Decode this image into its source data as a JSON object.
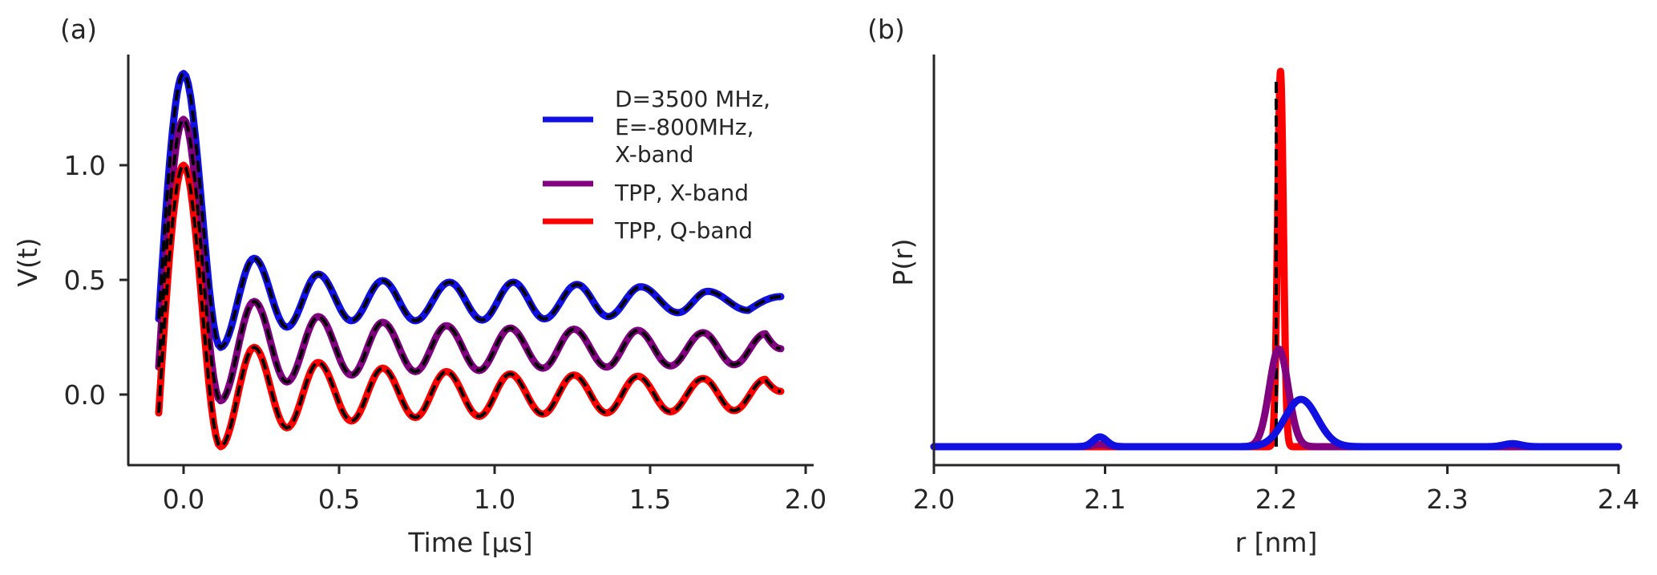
{
  "chart_data": [
    {
      "panel": "(a)",
      "type": "line",
      "xlabel": "Time [µs]",
      "ylabel": "V(t)",
      "xlim": [
        -0.178,
        2.03
      ],
      "ylim": [
        -0.3,
        1.48
      ],
      "xticks": [
        0.0,
        0.5,
        1.0,
        1.5,
        2.0
      ],
      "xtick_labels": [
        "0.0",
        "0.5",
        "1.0",
        "1.5",
        "2.0"
      ],
      "yticks": [
        0.0,
        0.5,
        1.0
      ],
      "ytick_labels": [
        "0.0",
        "0.5",
        "1.0"
      ],
      "grid": false,
      "legend_position": "top-right",
      "fit_overlay": {
        "style": "dashed",
        "color": "#000000",
        "description": "black dashed fit over each series"
      },
      "series": [
        {
          "name": "D=3500 MHz,\nE=-800MHz,\nX-band",
          "legend_lines": [
            "D=3500 MHz,",
            "E=-800MHz,",
            "X-band"
          ],
          "color": "#1010e0",
          "points": [
            [
              -0.08,
              0.33
            ],
            [
              0.0,
              1.4
            ],
            [
              0.119,
              0.206
            ],
            [
              0.227,
              0.594
            ],
            [
              0.332,
              0.294
            ],
            [
              0.433,
              0.525
            ],
            [
              0.54,
              0.322
            ],
            [
              0.64,
              0.497
            ],
            [
              0.745,
              0.322
            ],
            [
              0.855,
              0.49
            ],
            [
              0.96,
              0.325
            ],
            [
              1.06,
              0.49
            ],
            [
              1.16,
              0.33
            ],
            [
              1.265,
              0.48
            ],
            [
              1.365,
              0.34
            ],
            [
              1.47,
              0.47
            ],
            [
              1.59,
              0.357
            ],
            [
              1.685,
              0.45
            ],
            [
              1.815,
              0.367
            ],
            [
              1.92,
              0.427
            ]
          ]
        },
        {
          "name": "TPP, X-band",
          "legend_lines": [
            "TPP, X-band"
          ],
          "color": "#800080",
          "points": [
            [
              -0.08,
              0.12
            ],
            [
              0.0,
              1.2
            ],
            [
              0.119,
              -0.027
            ],
            [
              0.227,
              0.406
            ],
            [
              0.332,
              0.055
            ],
            [
              0.433,
              0.34
            ],
            [
              0.54,
              0.085
            ],
            [
              0.64,
              0.315
            ],
            [
              0.745,
              0.1
            ],
            [
              0.845,
              0.3
            ],
            [
              0.95,
              0.105
            ],
            [
              1.05,
              0.29
            ],
            [
              1.155,
              0.115
            ],
            [
              1.255,
              0.285
            ],
            [
              1.36,
              0.12
            ],
            [
              1.46,
              0.28
            ],
            [
              1.565,
              0.125
            ],
            [
              1.67,
              0.27
            ],
            [
              1.77,
              0.13
            ],
            [
              1.87,
              0.265
            ],
            [
              1.92,
              0.2
            ]
          ]
        },
        {
          "name": "TPP, Q-band",
          "legend_lines": [
            "TPP, Q-band"
          ],
          "color": "#ff0000",
          "points": [
            [
              -0.08,
              -0.08
            ],
            [
              0.0,
              1.0
            ],
            [
              0.119,
              -0.227
            ],
            [
              0.227,
              0.206
            ],
            [
              0.332,
              -0.145
            ],
            [
              0.433,
              0.14
            ],
            [
              0.54,
              -0.115
            ],
            [
              0.64,
              0.115
            ],
            [
              0.745,
              -0.1
            ],
            [
              0.845,
              0.1
            ],
            [
              0.95,
              -0.095
            ],
            [
              1.05,
              0.09
            ],
            [
              1.155,
              -0.085
            ],
            [
              1.255,
              0.085
            ],
            [
              1.36,
              -0.08
            ],
            [
              1.46,
              0.08
            ],
            [
              1.565,
              -0.075
            ],
            [
              1.67,
              0.07
            ],
            [
              1.77,
              -0.07
            ],
            [
              1.87,
              0.066
            ],
            [
              1.92,
              0.014
            ]
          ]
        }
      ]
    },
    {
      "panel": "(b)",
      "type": "line",
      "xlabel": "r [nm]",
      "ylabel": "P(r)",
      "xlim": [
        2.0,
        2.4
      ],
      "ylim": [
        -0.049,
        1.045
      ],
      "xticks": [
        2.0,
        2.1,
        2.2,
        2.3,
        2.4
      ],
      "xtick_labels": [
        "2.0",
        "2.1",
        "2.2",
        "2.3",
        "2.4"
      ],
      "yticks": [],
      "grid": false,
      "reference_line": {
        "r": 2.2,
        "p_top": 0.977,
        "style": "dashed",
        "color": "#000000"
      },
      "series": [
        {
          "name": "TPP, Q-band",
          "color": "#ff0000",
          "components": [
            {
              "center": 2.2025,
              "sigma": 0.0017,
              "amplitude": 1.0
            }
          ]
        },
        {
          "name": "TPP, X-band",
          "color": "#800080",
          "components": [
            {
              "center": 2.2015,
              "sigma": 0.0055,
              "amplitude": 0.26
            },
            {
              "center": 2.097,
              "sigma": 0.005,
              "amplitude": 0.006
            }
          ]
        },
        {
          "name": "D=3500 MHz, E=-800MHz, X-band",
          "color": "#1010e0",
          "components": [
            {
              "center": 2.2145,
              "sigma": 0.0095,
              "amplitude": 0.126
            },
            {
              "center": 2.097,
              "sigma": 0.004,
              "amplitude": 0.026
            },
            {
              "center": 2.338,
              "sigma": 0.005,
              "amplitude": 0.008
            }
          ]
        }
      ]
    }
  ]
}
